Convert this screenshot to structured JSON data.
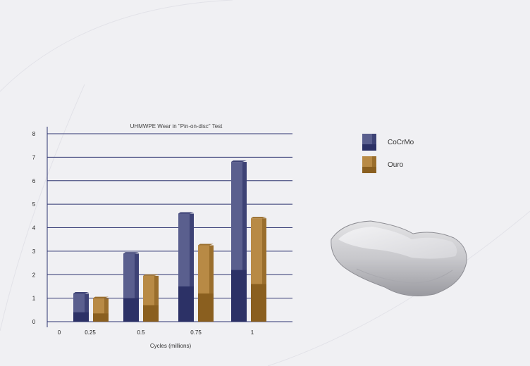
{
  "colors": {
    "background": "#f0f0f3",
    "gridline": "#2e3470",
    "cocrmo_front": "#5a5f8e",
    "cocrmo_side": "#3d4275",
    "cocrmo_dark": "#2c3166",
    "ouro_front": "#b88a45",
    "ouro_side": "#9a6e2c",
    "ouro_dark": "#8a5f1f"
  },
  "chart_data": {
    "type": "bar",
    "title": "UHMWPE Wear in \"Pin-on-disc\" Test",
    "xlabel": "Cycles (millions)",
    "ylabel": "",
    "ylim": [
      0,
      8
    ],
    "yticks": [
      "0",
      "1",
      "2",
      "3",
      "4",
      "5",
      "6",
      "7",
      "8"
    ],
    "x_origin_label": "0",
    "categories": [
      "0.25",
      "0.5",
      "0.75",
      "1"
    ],
    "series": [
      {
        "name": "CoCrMo",
        "values": [
          1.2,
          2.9,
          4.6,
          6.8
        ],
        "lower_segment": [
          0.4,
          1.0,
          1.5,
          2.2
        ]
      },
      {
        "name": "Ouro",
        "values": [
          1.0,
          1.95,
          3.25,
          4.4
        ],
        "lower_segment": [
          0.35,
          0.7,
          1.2,
          1.6
        ]
      }
    ],
    "grid": true,
    "legend": "right"
  },
  "legend": {
    "items": [
      {
        "label": "CoCrMo",
        "icon": "cocrmo-swatch"
      },
      {
        "label": "Ouro",
        "icon": "ouro-swatch"
      }
    ]
  },
  "image": {
    "icon": "implant-component-icon"
  }
}
